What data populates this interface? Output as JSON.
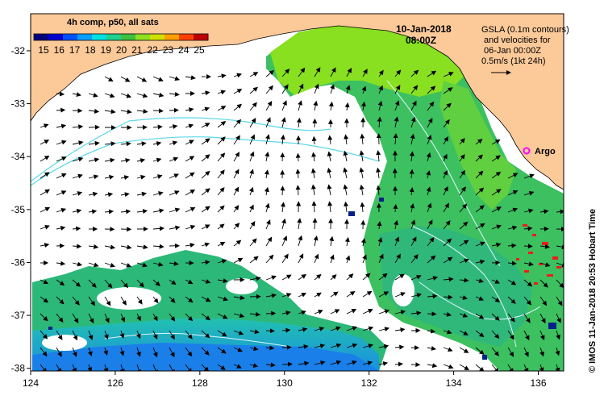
{
  "colorbar": {
    "title": "4h comp, p50, all sats",
    "ticks": [
      "15",
      "16",
      "17",
      "18",
      "19",
      "20",
      "21",
      "22",
      "23",
      "24",
      "25"
    ],
    "colors": [
      "#00007f",
      "#0000d0",
      "#0050ff",
      "#00a0ff",
      "#00e0e0",
      "#20d090",
      "#40c040",
      "#90e020",
      "#d0e000",
      "#ffa000",
      "#ff4000",
      "#c00000"
    ]
  },
  "timestamp": {
    "date": "10-Jan-2018",
    "time": "08:00Z"
  },
  "gsla_note": {
    "line1": "GSLA (0.1m contours)",
    "line2": "and velocities for",
    "line3": "06-Jan 00:00Z",
    "line4": "0.5m/s (1kt 24h)"
  },
  "argo_label": "Argo",
  "credit": "© IMOS 11-Jan-2018 20:53 Hobart Time",
  "axes": {
    "x_ticks": [
      "124",
      "126",
      "128",
      "130",
      "132",
      "134",
      "136"
    ],
    "y_ticks": [
      "-32",
      "-33",
      "-34",
      "-35",
      "-36",
      "-37",
      "-38"
    ],
    "xlim": [
      124,
      136.6
    ],
    "ylim": [
      -38.05,
      -31.3
    ]
  },
  "colors": {
    "land": "#fcc998",
    "ocean_nodata": "#ffffff",
    "contour": "#5ad8e8",
    "argo": "#ff00ff",
    "sst_red": "#ee1c1c"
  }
}
